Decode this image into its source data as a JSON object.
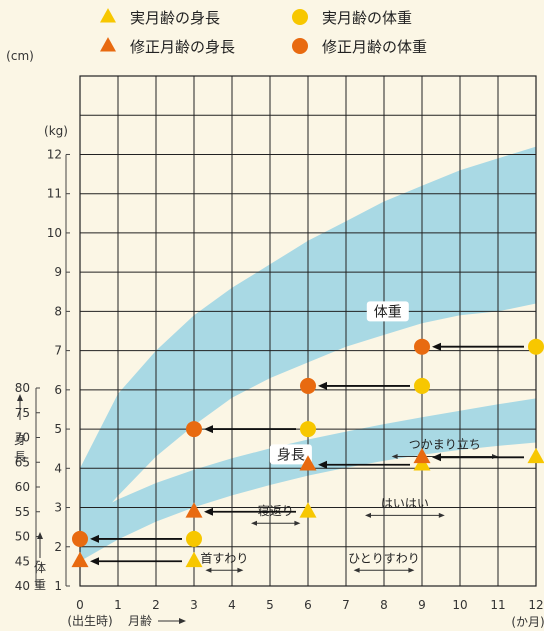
{
  "chart_data": {
    "type": "scatter",
    "legend": {
      "position": "top",
      "items": [
        {
          "label": "実月齢の身長",
          "marker": "triangle",
          "color": "#f7c700"
        },
        {
          "label": "実月齢の体重",
          "marker": "circle",
          "color": "#f7c700"
        },
        {
          "label": "修正月齢の身長",
          "marker": "triangle",
          "color": "#e86a10"
        },
        {
          "label": "修正月齢の体重",
          "marker": "circle",
          "color": "#e86a10"
        }
      ]
    },
    "x_axis": {
      "range": [
        0,
        12
      ],
      "ticks": [
        "0",
        "1",
        "2",
        "3",
        "4",
        "5",
        "6",
        "7",
        "8",
        "9",
        "10",
        "11",
        "12"
      ],
      "label": "月齢",
      "zero_note": "(出生時)",
      "unit": "(か月)"
    },
    "height_axis": {
      "range": [
        40,
        80
      ],
      "ticks": [
        "40",
        "45",
        "50",
        "55",
        "60",
        "65",
        "70",
        "75",
        "80"
      ],
      "unit": "(cm)",
      "label": "身長"
    },
    "weight_axis": {
      "range": [
        1,
        14
      ],
      "ticks": [
        "1",
        "2",
        "3",
        "4",
        "5",
        "6",
        "7",
        "8",
        "9",
        "10",
        "11",
        "12"
      ],
      "unit": "(kg)",
      "label": "体重"
    },
    "grid": true,
    "band_labels": {
      "height": "身長",
      "weight": "体重"
    },
    "colors": {
      "band": "#a9d9e4",
      "actual": "#f7c700",
      "corrected": "#e86a10",
      "background": "#fbf6e5"
    },
    "height_band": {
      "x": [
        0,
        1,
        2,
        3,
        4,
        5,
        6,
        7,
        8,
        9,
        10,
        11,
        12
      ],
      "upper": [
        53.5,
        57.5,
        60.8,
        63.5,
        65.8,
        67.8,
        69.6,
        71.2,
        72.7,
        74.1,
        75.4,
        76.7,
        77.9
      ],
      "lower": [
        45.0,
        49.4,
        53.0,
        55.9,
        58.3,
        60.4,
        62.3,
        63.9,
        65.3,
        66.5,
        67.5,
        68.3,
        69.0
      ]
    },
    "weight_band": {
      "x": [
        0,
        1,
        2,
        3,
        4,
        5,
        6,
        7,
        8,
        9,
        10,
        11,
        12
      ],
      "upper": [
        4.0,
        5.9,
        7.0,
        7.9,
        8.6,
        9.2,
        9.8,
        10.3,
        10.8,
        11.2,
        11.6,
        11.9,
        12.2
      ],
      "lower": [
        2.2,
        3.3,
        4.3,
        5.1,
        5.8,
        6.3,
        6.7,
        7.1,
        7.4,
        7.7,
        7.9,
        8.0,
        8.2
      ]
    },
    "series": [
      {
        "name": "実月齢の身長",
        "axis": "height",
        "marker": "triangle",
        "color": "#f7c700",
        "x": [
          3,
          6,
          9,
          12
        ],
        "y": [
          45,
          55,
          64.5,
          66
        ]
      },
      {
        "name": "修正月齢の身長",
        "axis": "height",
        "marker": "triangle",
        "color": "#e86a10",
        "x": [
          0,
          3,
          6,
          9
        ],
        "y": [
          45,
          55,
          64.5,
          66
        ]
      },
      {
        "name": "実月齢の体重",
        "axis": "weight",
        "marker": "circle",
        "color": "#f7c700",
        "x": [
          3,
          6,
          9,
          12
        ],
        "y": [
          2.2,
          5,
          6.1,
          7.1
        ]
      },
      {
        "name": "修正月齢の体重",
        "axis": "weight",
        "marker": "circle",
        "color": "#e86a10",
        "x": [
          0,
          3,
          6,
          9
        ],
        "y": [
          2.2,
          5,
          6.1,
          7.1
        ]
      }
    ],
    "arrows": [
      {
        "axis": "height",
        "from_x": 12,
        "to_x": 9,
        "y": 66
      },
      {
        "axis": "height",
        "from_x": 9,
        "to_x": 6,
        "y": 64.5
      },
      {
        "axis": "height",
        "from_x": 6,
        "to_x": 3,
        "y": 55
      },
      {
        "axis": "height",
        "from_x": 3,
        "to_x": 0,
        "y": 45
      },
      {
        "axis": "weight",
        "from_x": 12,
        "to_x": 9,
        "y": 7.1
      },
      {
        "axis": "weight",
        "from_x": 9,
        "to_x": 6,
        "y": 6.1
      },
      {
        "axis": "weight",
        "from_x": 6,
        "to_x": 3,
        "y": 5
      },
      {
        "axis": "weight",
        "from_x": 3,
        "to_x": 0,
        "y": 2.2
      }
    ],
    "milestones": [
      {
        "label": "首すわり",
        "start": 3.3,
        "end": 4.3,
        "level": 1.4
      },
      {
        "label": "寝返り",
        "start": 4.5,
        "end": 5.8,
        "level": 2.6
      },
      {
        "label": "ひとりすわり",
        "start": 7.2,
        "end": 8.8,
        "level": 1.4
      },
      {
        "label": "はいはい",
        "start": 7.5,
        "end": 9.6,
        "level": 2.8
      },
      {
        "label": "つかまり立ち",
        "start": 8.2,
        "end": 11.0,
        "level": 4.3
      }
    ]
  }
}
